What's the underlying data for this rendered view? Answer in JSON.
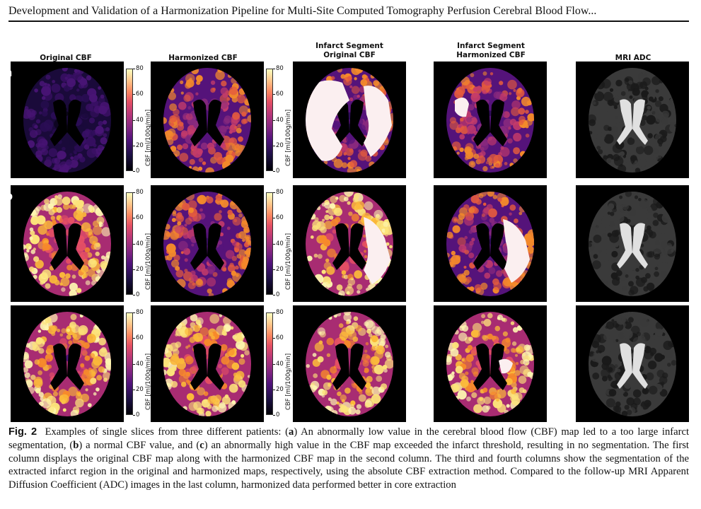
{
  "header": {
    "running_title": "Development and Validation of a Harmonization Pipeline for Multi-Site Computed Tomography Perfusion Cerebral Blood Flow..."
  },
  "columns": [
    {
      "title": "Original CBF"
    },
    {
      "title": "Harmonized CBF"
    },
    {
      "title": "Infarct Segment\nOriginal CBF"
    },
    {
      "title": "Infarct Segment\nHarmonized CBF"
    },
    {
      "title": "MRI ADC"
    }
  ],
  "rows": [
    {
      "label": "a"
    },
    {
      "label": "b"
    },
    {
      "label": "c"
    }
  ],
  "colorbar": {
    "label": "CBF [ml/100g/min]",
    "ticks": [
      "80",
      "60",
      "40",
      "20",
      "0"
    ],
    "range": [
      0,
      80
    ]
  },
  "caption": {
    "fig_label": "Fig. 2",
    "text_parts": [
      "Examples of single slices from three different patients: (",
      "a",
      ") An abnormally low value in the cerebral blood flow (CBF) map led to a too large infarct segmentation, (",
      "b",
      ") a normal CBF value, and (",
      "c",
      ") an abnormally high value in the CBF map exceeded the infarct threshold, resulting in no segmentation. The first column displays the original CBF map along with the harmonized CBF map in the second column. The third and fourth columns show the segmentation of the extracted infarct region in the original and harmonized maps, respectively, using the absolute CBF extraction method. Compared to the follow-up MRI Apparent Diffusion Coefficient (ADC) images in the last column, harmonized data performed better in core extraction"
    ]
  },
  "colors": {
    "inferno_low": "#000004",
    "inferno_mid": "#b5367a",
    "inferno_high": "#fcfdbf",
    "segment": "#fbeff0"
  }
}
